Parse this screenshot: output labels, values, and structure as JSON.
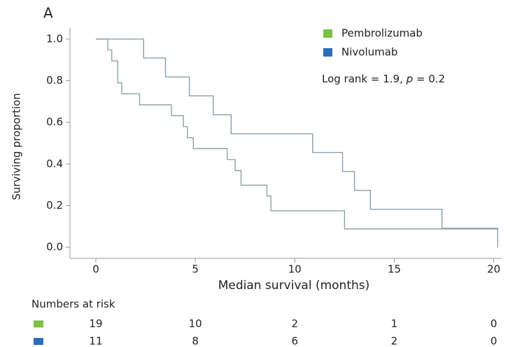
{
  "chart_data": {
    "type": "survival-step",
    "panel_label": "A",
    "x_label": "Median survival (months)",
    "y_label": "Surviving proportion",
    "annotation": [
      "Log rank = 1.9, ",
      "p",
      " = 0.2"
    ],
    "xlim": [
      -1.3,
      20.4
    ],
    "xticks": [
      0,
      5,
      10,
      15,
      20
    ],
    "ylim": [
      -0.06,
      1.06
    ],
    "yticks": [
      {
        "value": 0,
        "label": "0.0"
      },
      0.2,
      0.4,
      0.6,
      0.8,
      {
        "value": 1,
        "label": "1.0"
      }
    ],
    "series": [
      {
        "name": "Pembrolizumab",
        "color": "#7cc243",
        "line_color": "#8fa69a",
        "x": [
          0,
          0.6,
          0.8,
          1.1,
          1.3,
          2.2,
          3.8,
          4.4,
          4.6,
          4.9,
          5.3,
          6.6,
          7.0,
          7.3,
          8.6,
          8.8,
          12.5,
          20.2
        ],
        "values": [
          1,
          0.947,
          0.895,
          0.789,
          0.737,
          0.684,
          0.632,
          0.579,
          0.526,
          0.474,
          0.474,
          0.421,
          0.368,
          0.298,
          0.246,
          0.175,
          0.088,
          0.088
        ]
      },
      {
        "name": "Nivolumab",
        "color": "#2a6ebb",
        "line_color": "#8c9eae",
        "x": [
          0,
          2.4,
          3.5,
          4.7,
          5.9,
          6.8,
          10.9,
          12.4,
          13.0,
          13.8,
          17.4,
          20.2,
          20.2
        ],
        "values": [
          1,
          0.909,
          0.818,
          0.727,
          0.636,
          0.545,
          0.455,
          0.364,
          0.273,
          0.182,
          0.091,
          0.091,
          0
        ]
      }
    ],
    "risk_table": {
      "title": "Numbers at risk",
      "rows": [
        {
          "color": "#7cc243",
          "values": [
            19,
            10,
            2,
            1,
            0
          ]
        },
        {
          "color": "#2a6ebb",
          "values": [
            11,
            8,
            6,
            2,
            0
          ]
        }
      ]
    }
  }
}
